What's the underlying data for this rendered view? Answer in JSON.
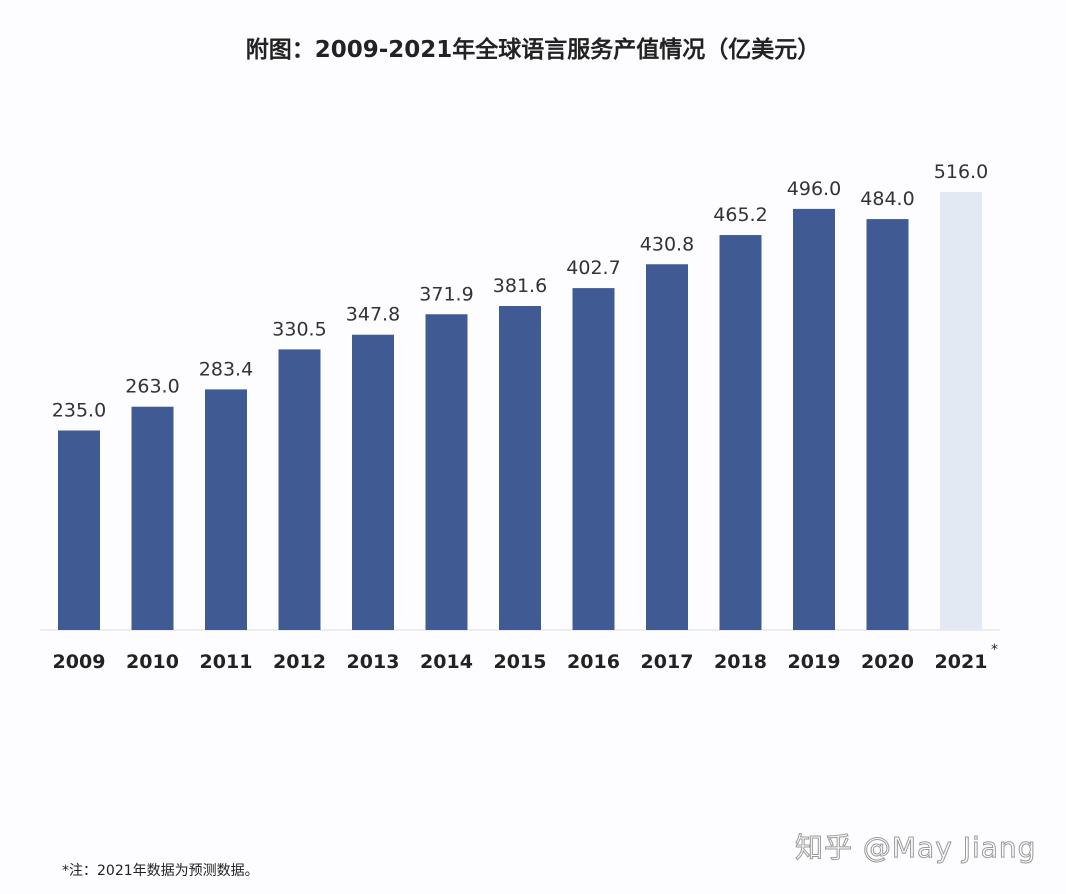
{
  "chart_data": {
    "type": "bar",
    "title": "附图：2009-2021年全球语言服务产值情况（亿美元）",
    "categories": [
      "2009",
      "2010",
      "2011",
      "2012",
      "2013",
      "2014",
      "2015",
      "2016",
      "2017",
      "2018",
      "2019",
      "2020",
      "2021"
    ],
    "category_suffix": {
      "2021": "*"
    },
    "values": [
      235.0,
      263.0,
      283.4,
      330.5,
      347.8,
      371.9,
      381.6,
      402.7,
      430.8,
      465.2,
      496.0,
      484.0,
      516.0
    ],
    "value_labels": [
      "235.0",
      "263.0",
      "283.4",
      "330.5",
      "347.8",
      "371.9",
      "381.6",
      "402.7",
      "430.8",
      "465.2",
      "496.0",
      "484.0",
      "516.0"
    ],
    "forecast": [
      "2021"
    ],
    "colors": {
      "actual": "#405b93",
      "forecast": "#e2e9f3"
    },
    "ylim": [
      0,
      540
    ],
    "grid": false,
    "note": "*注：2021年数据为预测数据。"
  },
  "watermark": "知乎 @May Jiang"
}
